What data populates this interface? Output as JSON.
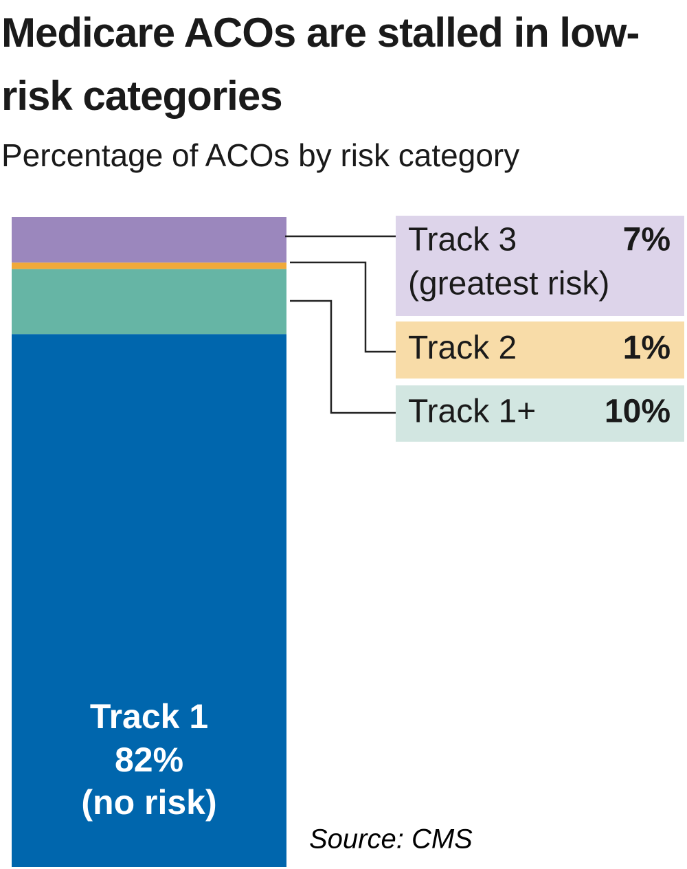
{
  "chart_data": {
    "type": "stacked_bar",
    "title": "Medicare ACOs are stalled in low-risk categories",
    "subtitle": "Percentage of ACOs by risk category",
    "source": "Source: CMS",
    "series": [
      {
        "name": "Track 1",
        "description": "(no risk)",
        "color": "#0066ad",
        "values": [
          82
        ],
        "value_labels": [
          "82%"
        ]
      },
      {
        "name": "Track 1+",
        "color": "#66b5a5",
        "label_color": "#d2e6e1",
        "values": [
          10
        ],
        "value_labels": [
          "10%"
        ]
      },
      {
        "name": "Track 2",
        "color": "#f0a93a",
        "label_color": "#f8dca8",
        "values": [
          1
        ],
        "value_labels": [
          "1%"
        ]
      },
      {
        "name": "Track 3",
        "description": "(greatest risk)",
        "color": "#9b87bd",
        "label_color": "#ddd4ea",
        "values": [
          7
        ],
        "value_labels": [
          "7%"
        ]
      }
    ]
  }
}
